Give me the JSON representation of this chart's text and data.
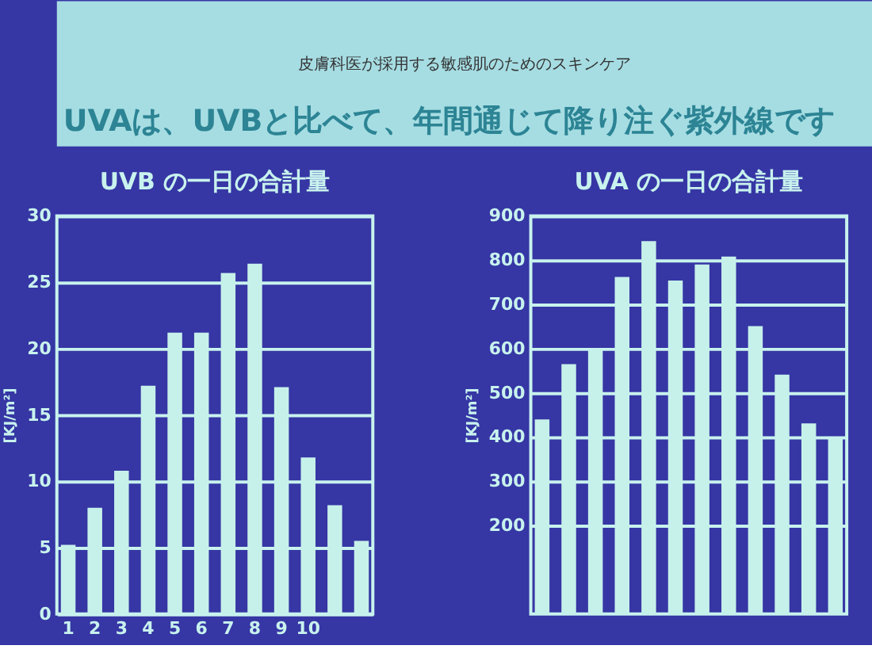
{
  "chart_data": [
    {
      "type": "other",
      "title": "UVAは、UVBと比べて、年間通じて降り注ぐ紫外線です",
      "annotations": [
        "皮膚科医が採用する敏感肌のためのスキンケア"
      ]
    },
    {
      "type": "bar",
      "title": "UVB の一日の合計量",
      "ylabel": "[KJ/m²]",
      "categories": [
        "1",
        "2",
        "3",
        "4",
        "5",
        "6",
        "7",
        "8",
        "9",
        "10",
        null,
        null
      ],
      "values": [
        5.2,
        8,
        10.8,
        17.2,
        21.2,
        21.2,
        25.7,
        26.4,
        17.1,
        11.8,
        8.2,
        5.5
      ],
      "color": "#c6f1ea",
      "ylim": [
        0,
        30
      ],
      "yticks": [
        0,
        5,
        10,
        15,
        20,
        25,
        30
      ],
      "grid": "y"
    },
    {
      "type": "bar",
      "title": "UVA の一日の合計量",
      "ylabel": "[KJ/m²]",
      "categories": [
        null,
        null,
        null,
        null,
        null,
        null,
        null,
        null,
        null,
        null,
        null,
        null
      ],
      "values": [
        440,
        565,
        597,
        762,
        843,
        754,
        790,
        808,
        651,
        541,
        431,
        397
      ],
      "color": "#c6f1ea",
      "ylim": [
        0,
        900
      ],
      "yticks": [
        200,
        300,
        400,
        500,
        600,
        700,
        800,
        900
      ],
      "grid": "y"
    }
  ]
}
